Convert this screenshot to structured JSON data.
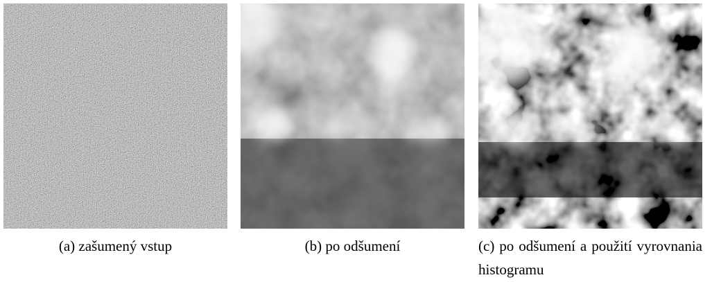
{
  "subfigures": [
    {
      "caption": "(a) zašumený vstup"
    },
    {
      "caption": "(b) po odšumení"
    },
    {
      "caption": "(c) po odšumení a použití vyrovnania histogramu"
    }
  ]
}
